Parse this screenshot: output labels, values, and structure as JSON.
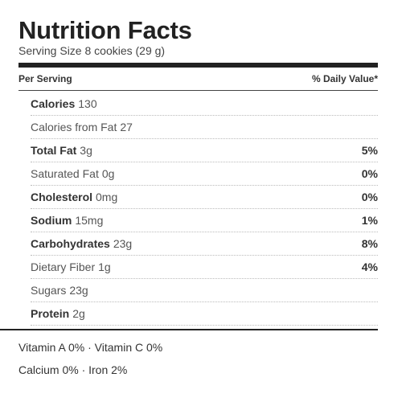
{
  "label": {
    "title": "Nutrition Facts",
    "serving_size": "Serving Size 8 cookies (29 g)",
    "header_left": "Per Serving",
    "header_right": "% Daily Value*"
  },
  "nutrients": [
    {
      "name": "Calories",
      "amount": "130",
      "dv": "",
      "bold": true
    },
    {
      "name": "Calories from Fat",
      "amount": "27",
      "dv": "",
      "bold": false
    },
    {
      "name": "Total Fat",
      "amount": "3g",
      "dv": "5%",
      "bold": true
    },
    {
      "name": "Saturated Fat",
      "amount": "0g",
      "dv": "0%",
      "bold": false
    },
    {
      "name": "Cholesterol",
      "amount": "0mg",
      "dv": "0%",
      "bold": true
    },
    {
      "name": "Sodium",
      "amount": "15mg",
      "dv": "1%",
      "bold": true
    },
    {
      "name": "Carbohydrates",
      "amount": "23g",
      "dv": "8%",
      "bold": true
    },
    {
      "name": "Dietary Fiber",
      "amount": "1g",
      "dv": "4%",
      "bold": false
    },
    {
      "name": "Sugars",
      "amount": "23g",
      "dv": "",
      "bold": false
    },
    {
      "name": "Protein",
      "amount": "2g",
      "dv": "",
      "bold": true
    }
  ],
  "vitamins": {
    "line1": "Vitamin A 0% · Vitamin C 0%",
    "line2": "Calcium 0% · Iron 2%"
  }
}
